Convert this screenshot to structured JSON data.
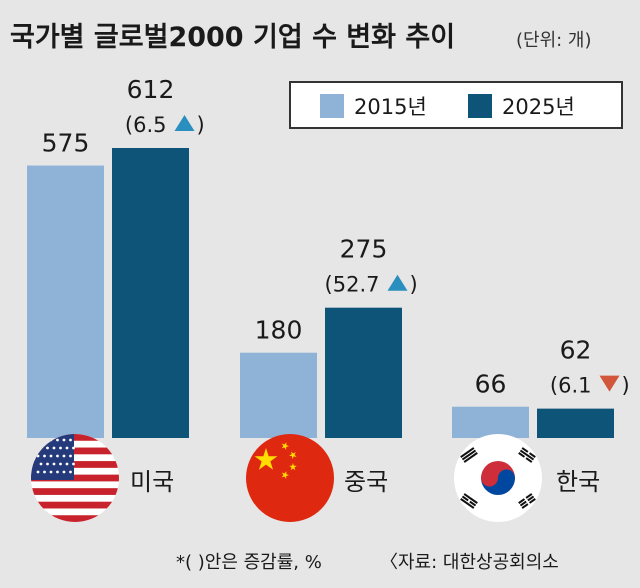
{
  "title": "국가별 글로벌2000 기업 수 변화 추이",
  "unit_note": "(단위: 개)",
  "footnote": "*(   )안은 증감률, %",
  "source": "〈자료: 대한상공회의소",
  "chart_data": {
    "type": "bar",
    "categories": [
      "미국",
      "중국",
      "한국"
    ],
    "series": [
      {
        "name": "2015년",
        "values": [
          575,
          180,
          66
        ],
        "color": "#8fb3d7"
      },
      {
        "name": "2025년",
        "values": [
          612,
          275,
          62
        ],
        "color": "#0e5478"
      }
    ],
    "changes": [
      {
        "value": "6.5",
        "direction": "up",
        "color": "#2a8fbe"
      },
      {
        "value": "52.7",
        "direction": "up",
        "color": "#2a8fbe"
      },
      {
        "value": "6.1",
        "direction": "down",
        "color": "#d1563c"
      }
    ],
    "legend_position": "top-right",
    "ylim": [
      0,
      640
    ],
    "grid": false,
    "flags": [
      "us-flag-icon",
      "china-flag-icon",
      "korea-flag-icon"
    ]
  }
}
